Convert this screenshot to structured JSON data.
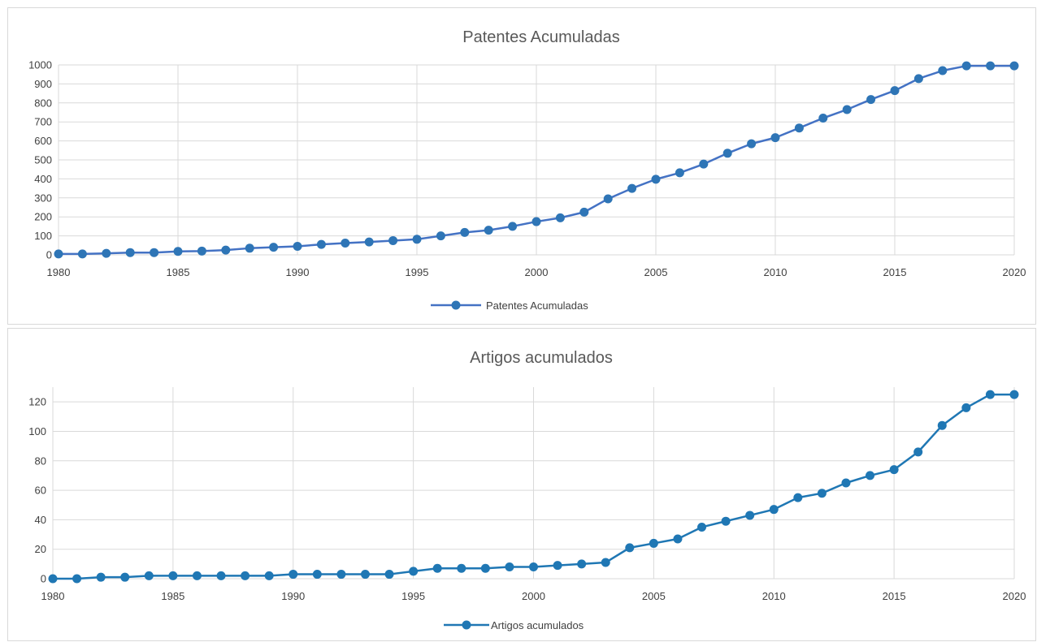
{
  "chart_data": [
    {
      "type": "line",
      "title": "Patentes Acumuladas",
      "xlabel": "",
      "ylabel": "",
      "xlim": [
        1980,
        2020
      ],
      "ylim": [
        0,
        1000
      ],
      "x_ticks": [
        "1980",
        "1985",
        "1990",
        "1995",
        "2000",
        "2005",
        "2010",
        "2015",
        "2020"
      ],
      "y_ticks": [
        "0",
        "100",
        "200",
        "300",
        "400",
        "500",
        "600",
        "700",
        "800",
        "900",
        "1000"
      ],
      "grid": true,
      "legend_position": "bottom",
      "series": [
        {
          "name": "Patentes Acumuladas",
          "color": "#4472c4",
          "x": [
            1980,
            1981,
            1982,
            1983,
            1984,
            1985,
            1986,
            1987,
            1988,
            1989,
            1990,
            1991,
            1992,
            1993,
            1994,
            1995,
            1996,
            1997,
            1998,
            1999,
            2000,
            2001,
            2002,
            2003,
            2004,
            2005,
            2006,
            2007,
            2008,
            2009,
            2010,
            2011,
            2012,
            2013,
            2014,
            2015,
            2016,
            2017,
            2018,
            2019,
            2020
          ],
          "values": [
            5,
            5,
            8,
            12,
            12,
            18,
            20,
            25,
            35,
            40,
            45,
            55,
            62,
            68,
            75,
            82,
            100,
            118,
            130,
            150,
            175,
            195,
            225,
            295,
            350,
            398,
            432,
            478,
            535,
            585,
            617,
            668,
            720,
            765,
            818,
            865,
            928,
            970,
            995,
            995,
            995
          ]
        }
      ]
    },
    {
      "type": "line",
      "title": "Artigos acumulados",
      "xlabel": "",
      "ylabel": "",
      "xlim": [
        1980,
        2020
      ],
      "ylim": [
        0,
        130
      ],
      "x_ticks": [
        "1980",
        "1985",
        "1990",
        "1995",
        "2000",
        "2005",
        "2010",
        "2015",
        "2020"
      ],
      "y_ticks": [
        "0",
        "20",
        "40",
        "60",
        "80",
        "100",
        "120"
      ],
      "grid": true,
      "legend_position": "bottom",
      "series": [
        {
          "name": "Artigos acumulados",
          "color": "#1f77b4",
          "x": [
            1980,
            1981,
            1982,
            1983,
            1984,
            1985,
            1986,
            1987,
            1988,
            1989,
            1990,
            1991,
            1992,
            1993,
            1994,
            1995,
            1996,
            1997,
            1998,
            1999,
            2000,
            2001,
            2002,
            2003,
            2004,
            2005,
            2006,
            2007,
            2008,
            2009,
            2010,
            2011,
            2012,
            2013,
            2014,
            2015,
            2016,
            2017,
            2018,
            2019,
            2020
          ],
          "values": [
            0,
            0,
            1,
            1,
            2,
            2,
            2,
            2,
            2,
            2,
            3,
            3,
            3,
            3,
            3,
            5,
            7,
            7,
            7,
            8,
            8,
            9,
            10,
            11,
            21,
            24,
            27,
            35,
            39,
            43,
            47,
            55,
            58,
            65,
            70,
            74,
            86,
            104,
            116,
            125,
            125
          ]
        }
      ]
    }
  ]
}
